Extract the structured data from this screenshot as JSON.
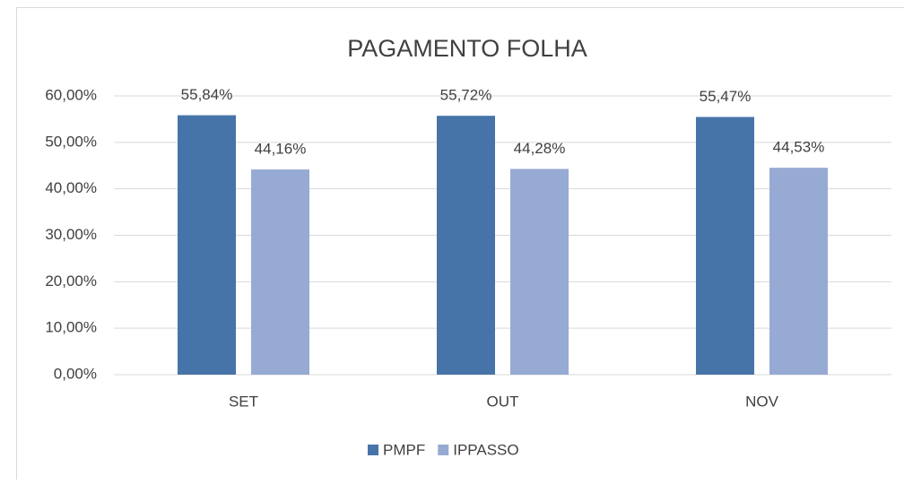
{
  "chart_data": {
    "type": "bar",
    "title": "PAGAMENTO FOLHA",
    "categories": [
      "SET",
      "OUT",
      "NOV"
    ],
    "series": [
      {
        "name": "PMPF",
        "color": "#4674a8",
        "values": [
          55.84,
          55.72,
          55.47
        ],
        "value_labels": [
          "55,84%",
          "55,72%",
          "55,47%"
        ]
      },
      {
        "name": "IPPASSO",
        "color": "#97aad3",
        "values": [
          44.16,
          44.28,
          44.53
        ],
        "value_labels": [
          "44,16%",
          "44,28%",
          "44,53%"
        ]
      }
    ],
    "ylim": [
      0,
      60
    ],
    "yticks": [
      {
        "value": 0,
        "label": "0,00%"
      },
      {
        "value": 10,
        "label": "10,00%"
      },
      {
        "value": 20,
        "label": "20,00%"
      },
      {
        "value": 30,
        "label": "30,00%"
      },
      {
        "value": 40,
        "label": "40,00%"
      },
      {
        "value": 50,
        "label": "50,00%"
      },
      {
        "value": 60,
        "label": "60,00%"
      }
    ],
    "grid": true,
    "legend": "bottom"
  }
}
